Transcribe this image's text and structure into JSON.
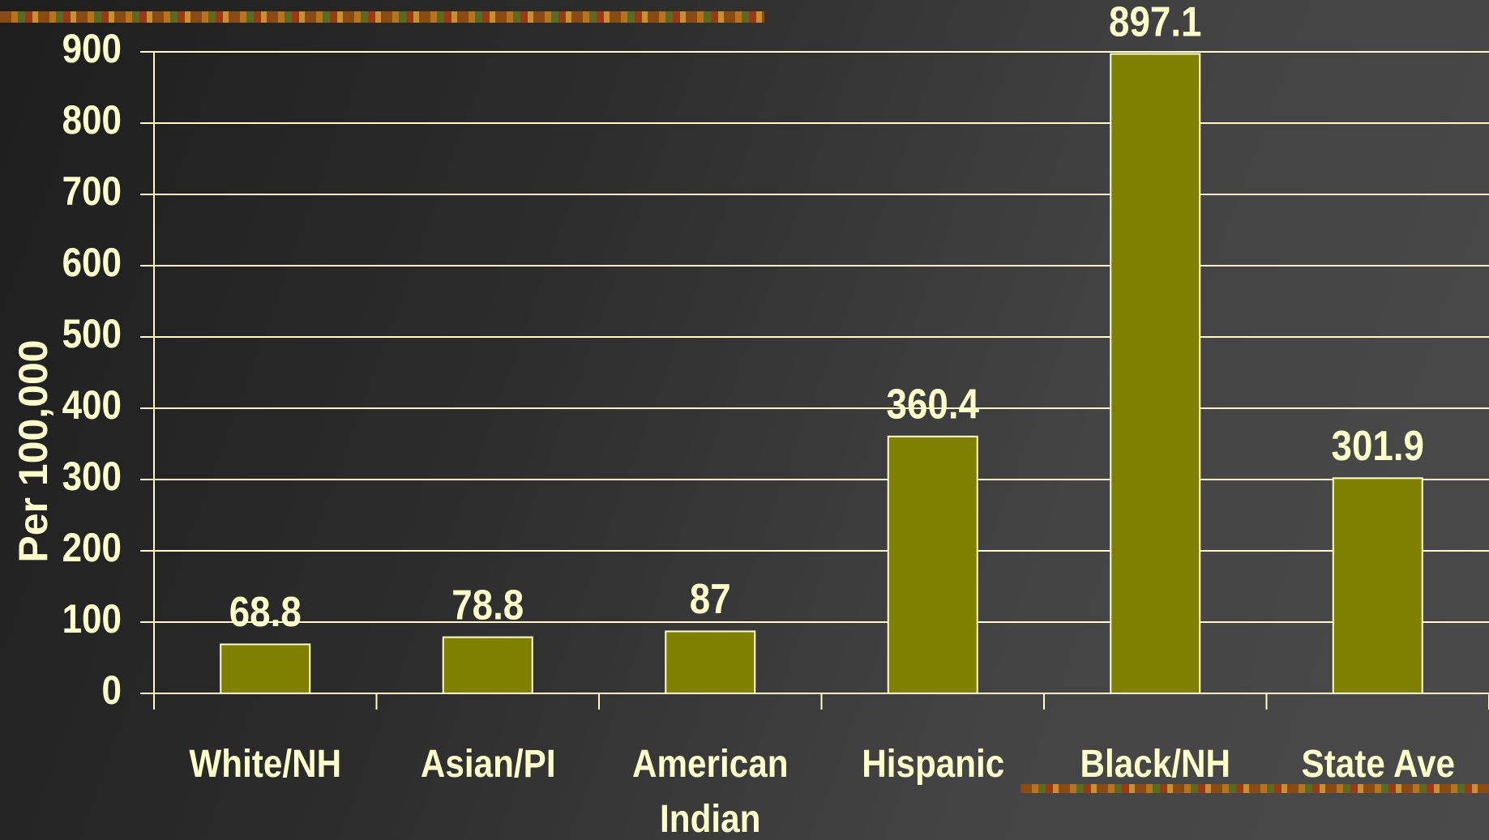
{
  "chart_data": {
    "type": "bar",
    "y_label": "Per 100,000",
    "categories": [
      "White/NH",
      "Asian/PI",
      "American Indian",
      "Hispanic",
      "Black/NH",
      "State Ave"
    ],
    "values": [
      68.8,
      78.8,
      87,
      360.4,
      897.1,
      301.9
    ],
    "color": "#808000",
    "ylim": [
      0,
      900
    ],
    "yticks": [
      0,
      100,
      200,
      300,
      400,
      500,
      600,
      700,
      800,
      900
    ],
    "grid": true
  }
}
